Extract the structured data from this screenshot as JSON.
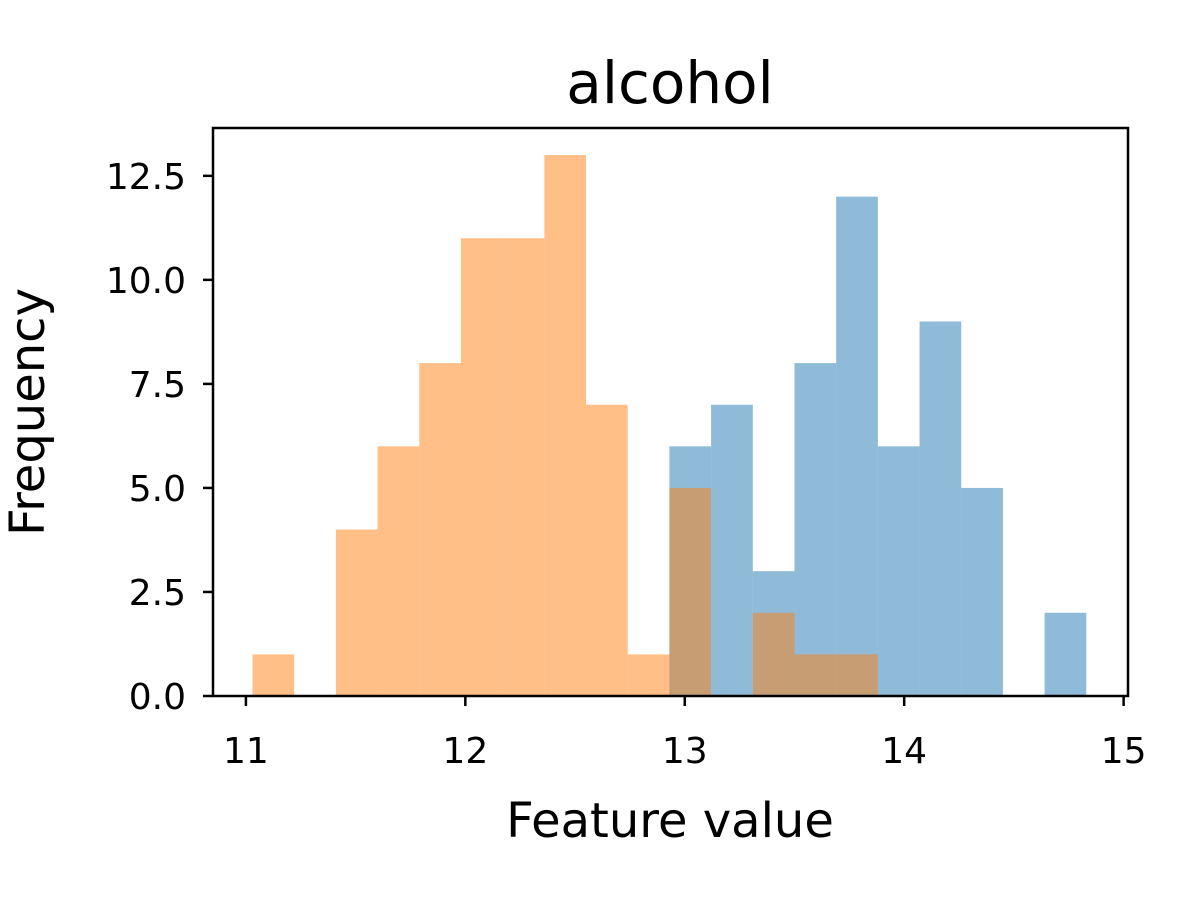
{
  "chart_data": {
    "type": "bar",
    "subtype": "overlapping-histogram",
    "title": "alcohol",
    "xlabel": "Feature value",
    "ylabel": "Frequency",
    "xlim": [
      10.85,
      15.02
    ],
    "ylim": [
      0,
      13.65
    ],
    "x_ticks": [
      11,
      12,
      13,
      14,
      15
    ],
    "x_tick_labels": [
      "11",
      "12",
      "13",
      "14",
      "15"
    ],
    "y_ticks": [
      0,
      2.5,
      5,
      7.5,
      10,
      12.5
    ],
    "y_tick_labels": [
      "0.0",
      "2.5",
      "5.0",
      "7.5",
      "10.0",
      "12.5"
    ],
    "grid": false,
    "legend": "none",
    "series": [
      {
        "color": "#1f77b4",
        "opacity": 0.5,
        "bin_edges": [
          12.93,
          13.12,
          13.31,
          13.5,
          13.69,
          13.88,
          14.07,
          14.26,
          14.45,
          14.64,
          14.83
        ],
        "counts": [
          6,
          7,
          3,
          8,
          12,
          6,
          9,
          5,
          0,
          2
        ]
      },
      {
        "color": "#ff7f0e",
        "opacity": 0.5,
        "bin_edges": [
          11.03,
          11.22,
          11.41,
          11.6,
          11.79,
          11.98,
          12.17,
          12.36,
          12.55,
          12.74,
          12.93,
          13.12,
          13.31,
          13.5,
          13.69,
          13.88
        ],
        "counts": [
          1,
          0,
          4,
          6,
          8,
          11,
          11,
          13,
          7,
          1,
          5,
          0,
          2,
          1,
          1
        ]
      }
    ]
  }
}
